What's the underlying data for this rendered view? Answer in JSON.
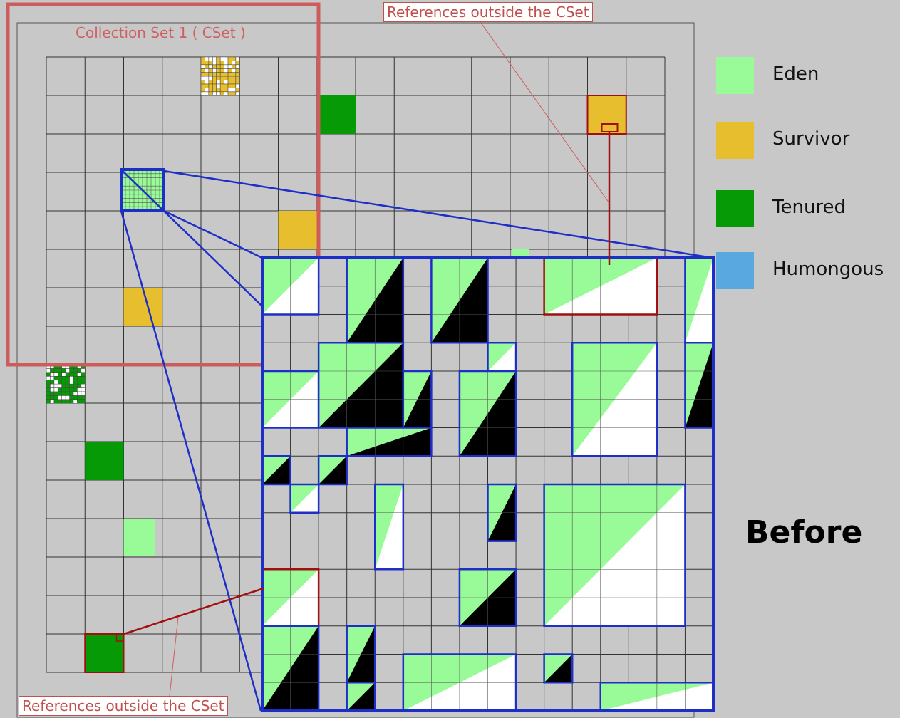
{
  "cset_label": "Collection Set 1 ( CSet )",
  "ref_label_top": "References outside the CSet",
  "ref_label_bottom": "References outside the CSet",
  "before_label": "Before",
  "legend": [
    {
      "label": "Eden",
      "color": "#98fb98"
    },
    {
      "label": "Survivor",
      "color": "#e6be2e"
    },
    {
      "label": "Tenured",
      "color": "#069a06"
    },
    {
      "label": "Humongous",
      "color": "#5aa8e0"
    }
  ],
  "colors": {
    "background": "#c8c8c8",
    "grid_line": "#333333",
    "cset_border": "#cd5c5c",
    "zoom_border": "#1e2fc8",
    "reference_line": "#a01010",
    "white": "#ffffff",
    "black": "#000000"
  }
}
